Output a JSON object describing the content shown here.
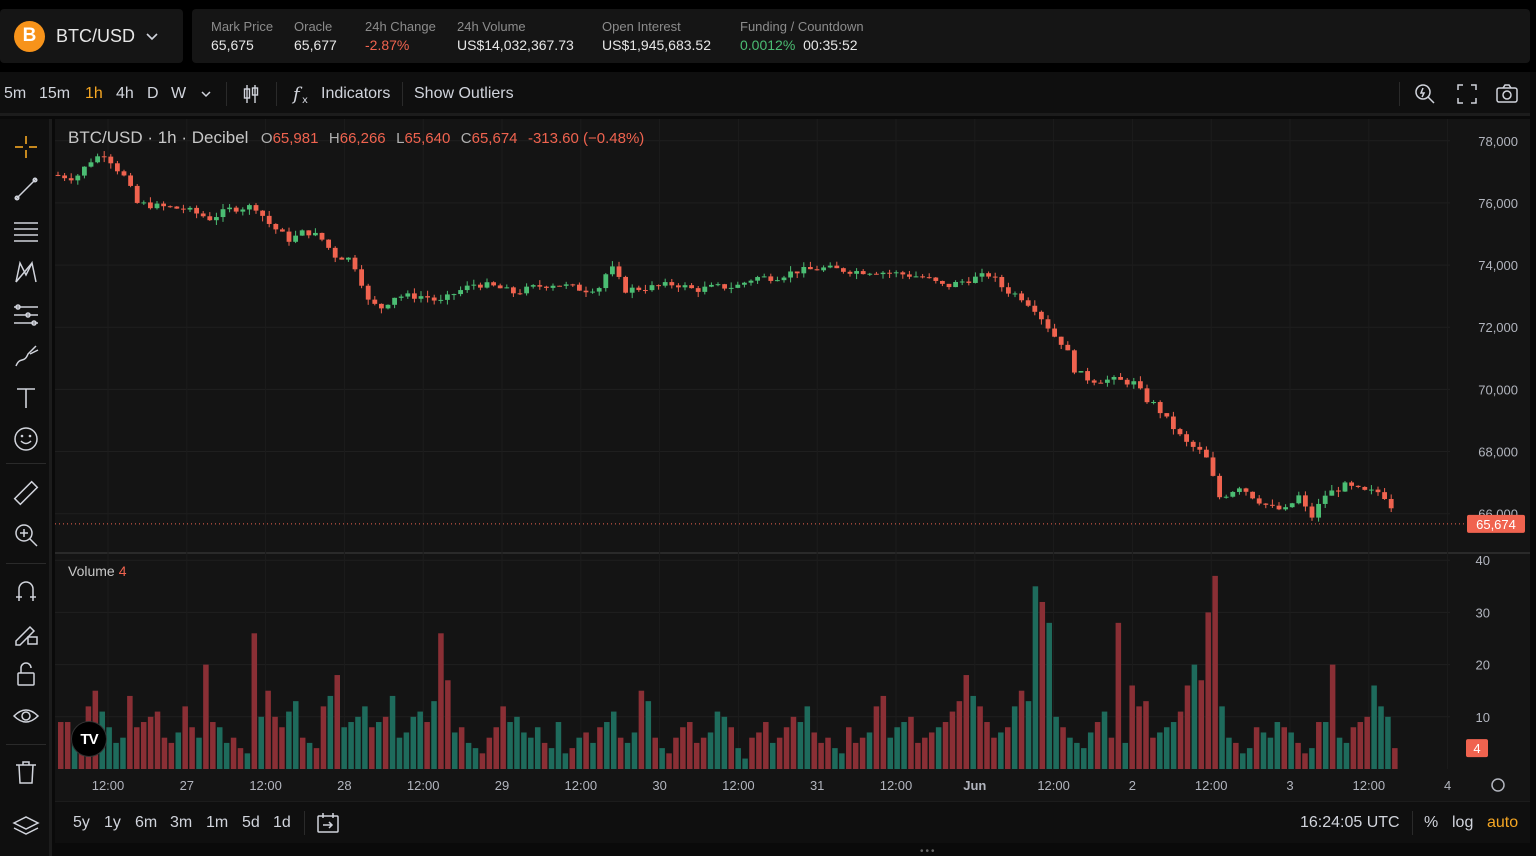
{
  "header": {
    "pair": "BTC/USD",
    "logo_glyph": "B",
    "stats": [
      {
        "label": "Mark Price",
        "value": "65,675"
      },
      {
        "label": "Oracle",
        "value": "65,677"
      },
      {
        "label": "24h Change",
        "value": "-2.87%"
      },
      {
        "label": "24h Volume",
        "value": "US$14,032,367.73"
      },
      {
        "label": "Open Interest",
        "value": "US$1,945,683.52"
      },
      {
        "label": "Funding / Countdown",
        "value": "0.0012%",
        "value2": "00:35:52"
      }
    ]
  },
  "toolbar": {
    "timeframes": [
      "5m",
      "15m",
      "1h",
      "4h",
      "D",
      "W"
    ],
    "active_timeframe": "1h",
    "indicators_label": "Indicators",
    "outliers_label": "Show Outliers"
  },
  "legend": {
    "title": "BTC/USD · 1h · Decibel",
    "o_key": "O",
    "o_val": "65,981",
    "h_key": "H",
    "h_val": "66,266",
    "l_key": "L",
    "l_val": "65,640",
    "c_key": "C",
    "c_val": "65,674",
    "change": "-313.60 (−0.48%)"
  },
  "volume_legend": {
    "label": "Volume",
    "value": "4"
  },
  "tv_logo": "TV",
  "chart_data": {
    "type": "candlestick",
    "price_axis": {
      "ticks": [
        "78,000",
        "76,000",
        "74,000",
        "72,000",
        "70,000",
        "68,000",
        "66,000"
      ],
      "range": [
        64800,
        78700
      ]
    },
    "volume_axis": {
      "ticks": [
        "40",
        "30",
        "20",
        "10"
      ],
      "range": [
        0,
        41
      ]
    },
    "x_ticks": [
      "12:00",
      "27",
      "12:00",
      "28",
      "12:00",
      "29",
      "12:00",
      "30",
      "12:00",
      "31",
      "12:00",
      "Jun",
      "12:00",
      "2",
      "12:00",
      "3",
      "12:00",
      "4"
    ],
    "last_price": "65,674",
    "last_volume": "4",
    "price_path": [
      [
        0,
        76900
      ],
      [
        20,
        76800
      ],
      [
        37,
        77400
      ],
      [
        50,
        77600
      ],
      [
        62,
        77100
      ],
      [
        73,
        76700
      ],
      [
        80,
        76000
      ],
      [
        100,
        75900
      ],
      [
        130,
        75800
      ],
      [
        155,
        75500
      ],
      [
        175,
        75800
      ],
      [
        200,
        75900
      ],
      [
        215,
        75300
      ],
      [
        235,
        74800
      ],
      [
        250,
        75100
      ],
      [
        265,
        74900
      ],
      [
        280,
        74300
      ],
      [
        295,
        74200
      ],
      [
        305,
        73700
      ],
      [
        310,
        72900
      ],
      [
        325,
        72600
      ],
      [
        340,
        73000
      ],
      [
        370,
        73000
      ],
      [
        385,
        72800
      ],
      [
        400,
        73100
      ],
      [
        420,
        73400
      ],
      [
        440,
        73300
      ],
      [
        460,
        73100
      ],
      [
        480,
        73300
      ],
      [
        500,
        73400
      ],
      [
        530,
        73200
      ],
      [
        545,
        73300
      ],
      [
        555,
        74000
      ],
      [
        570,
        73200
      ],
      [
        600,
        73300
      ],
      [
        620,
        73400
      ],
      [
        640,
        73200
      ],
      [
        660,
        73300
      ],
      [
        680,
        73300
      ],
      [
        700,
        73600
      ],
      [
        720,
        73600
      ],
      [
        740,
        73800
      ],
      [
        770,
        73900
      ],
      [
        800,
        73800
      ],
      [
        820,
        73800
      ],
      [
        850,
        73700
      ],
      [
        870,
        73600
      ],
      [
        890,
        73300
      ],
      [
        910,
        73500
      ],
      [
        935,
        73700
      ],
      [
        950,
        73200
      ],
      [
        965,
        73000
      ],
      [
        980,
        72600
      ],
      [
        1000,
        71700
      ],
      [
        1010,
        71400
      ],
      [
        1020,
        70600
      ],
      [
        1035,
        70300
      ],
      [
        1060,
        70300
      ],
      [
        1080,
        70200
      ],
      [
        1090,
        69700
      ],
      [
        1100,
        69500
      ],
      [
        1115,
        68900
      ],
      [
        1130,
        68300
      ],
      [
        1150,
        67900
      ],
      [
        1165,
        66500
      ],
      [
        1185,
        66900
      ],
      [
        1200,
        66500
      ],
      [
        1215,
        66200
      ],
      [
        1230,
        66100
      ],
      [
        1245,
        66600
      ],
      [
        1255,
        65800
      ],
      [
        1270,
        66600
      ],
      [
        1290,
        66900
      ],
      [
        1310,
        66700
      ],
      [
        1325,
        66700
      ],
      [
        1335,
        66400
      ],
      [
        1341,
        65674
      ]
    ],
    "volume_bars": [
      9,
      9,
      6,
      7,
      12,
      15,
      11,
      8,
      5,
      6,
      14,
      8,
      9,
      10,
      11,
      6,
      5,
      7,
      12,
      8,
      6,
      20,
      9,
      8,
      5,
      6,
      4,
      3,
      26,
      10,
      15,
      10,
      8,
      11,
      13,
      6,
      5,
      4,
      12,
      14,
      18,
      8,
      9,
      10,
      12,
      8,
      9,
      10,
      14,
      6,
      7,
      10,
      11,
      9,
      13,
      26,
      17,
      7,
      8,
      5,
      4,
      3,
      6,
      8,
      12,
      9,
      10,
      7,
      6,
      8,
      5,
      4,
      9,
      3,
      4,
      6,
      7,
      5,
      8,
      9,
      11,
      6,
      5,
      7,
      15,
      13,
      6,
      4,
      3,
      6,
      8,
      9,
      5,
      6,
      7,
      11,
      10,
      8,
      4,
      2,
      6,
      7,
      9,
      5,
      6,
      8,
      10,
      9,
      12,
      7,
      5,
      6,
      4,
      3,
      8,
      5,
      6,
      7,
      12,
      14,
      6,
      8,
      9,
      10,
      5,
      6,
      7,
      8,
      9,
      11,
      13,
      18,
      14,
      12,
      9,
      6,
      7,
      8,
      12,
      15,
      13,
      35,
      32,
      28,
      10,
      8,
      6,
      5,
      4,
      7,
      9,
      11,
      6,
      28,
      5,
      16,
      12,
      13,
      6,
      7,
      8,
      9,
      11,
      16,
      20,
      17,
      30,
      37,
      12,
      6,
      5,
      3,
      4,
      8,
      7,
      6,
      9,
      8,
      7,
      5,
      3,
      4,
      9,
      9,
      20,
      6,
      5,
      8,
      9,
      10,
      16,
      12,
      10,
      4
    ],
    "volume_colors": "mixed red/teal"
  },
  "bottom": {
    "ranges": [
      "5y",
      "1y",
      "6m",
      "3m",
      "1m",
      "5d",
      "1d"
    ],
    "time": "16:24:05 UTC",
    "pct": "%",
    "log": "log",
    "auto": "auto"
  },
  "colors": {
    "up": "#4bbd73",
    "down": "#f0634f",
    "accent": "#f5a623",
    "vol_up": "#1e6b5c",
    "vol_down": "#8a2f35"
  }
}
